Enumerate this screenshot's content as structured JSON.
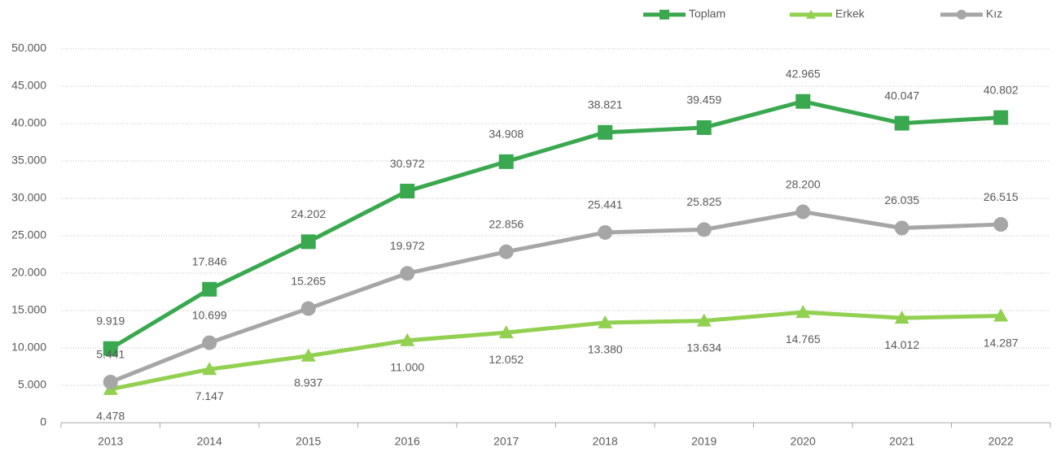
{
  "chart_data": {
    "type": "line",
    "categories": [
      "2013",
      "2014",
      "2015",
      "2016",
      "2017",
      "2018",
      "2019",
      "2020",
      "2021",
      "2022"
    ],
    "series": [
      {
        "name": "Toplam",
        "color": "#3aa84f",
        "marker": "square",
        "values": [
          9919,
          17846,
          24202,
          30972,
          34908,
          38821,
          39459,
          42965,
          40047,
          40802
        ],
        "value_labels": [
          "9.919",
          "17.846",
          "24.202",
          "30.972",
          "34.908",
          "38.821",
          "39.459",
          "42.965",
          "40.047",
          "40.802"
        ]
      },
      {
        "name": "Erkek",
        "color": "#92d050",
        "marker": "triangle",
        "values": [
          4478,
          7147,
          8937,
          11000,
          12052,
          13380,
          13634,
          14765,
          14012,
          14287
        ],
        "value_labels": [
          "4.478",
          "7.147",
          "8.937",
          "11.000",
          "12.052",
          "13.380",
          "13.634",
          "14.765",
          "14.012",
          "14.287"
        ]
      },
      {
        "name": "Kız",
        "color": "#a6a6a6",
        "marker": "circle",
        "values": [
          5441,
          10699,
          15265,
          19972,
          22856,
          25441,
          25825,
          28200,
          26035,
          26515
        ],
        "value_labels": [
          "5.441",
          "10.699",
          "15.265",
          "19.972",
          "22.856",
          "25.441",
          "25.825",
          "28.200",
          "26.035",
          "26.515"
        ]
      }
    ],
    "ylim": [
      0,
      50000
    ],
    "yticks": [
      0,
      {
        "value": 5000,
        "label": "5.000"
      },
      {
        "value": 10000,
        "label": "10.000"
      },
      {
        "value": 15000,
        "label": "15.000"
      },
      {
        "value": 20000,
        "label": "20.000"
      },
      {
        "value": 25000,
        "label": "25.000"
      },
      {
        "value": 30000,
        "label": "30.000"
      },
      {
        "value": 35000,
        "label": "35.000"
      },
      {
        "value": 40000,
        "label": "40.000"
      },
      {
        "value": 45000,
        "label": "45.000"
      },
      {
        "value": 50000,
        "label": "50.000"
      }
    ],
    "grid": true,
    "legend": "top-right"
  }
}
